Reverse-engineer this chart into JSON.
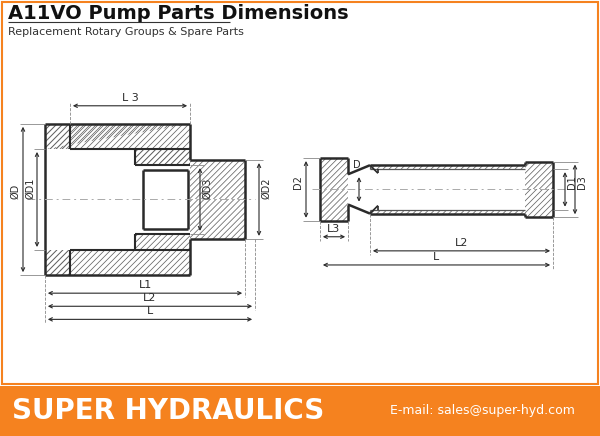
{
  "title": "A11VO Pump Parts Dimensions",
  "subtitle": "Replacement Rotary Groups & Spare Parts",
  "footer_text": "SUPER HYDRAULICS",
  "footer_email": "E-mail: sales@super-hyd.com",
  "footer_color": "#F5821F",
  "footer_text_color": "#FFFFFF",
  "bg_color": "#FFFFFF",
  "line_color": "#2a2a2a",
  "hatch_color": "#666666",
  "title_fontsize": 14,
  "subtitle_fontsize": 8,
  "border_color": "#F5821F"
}
